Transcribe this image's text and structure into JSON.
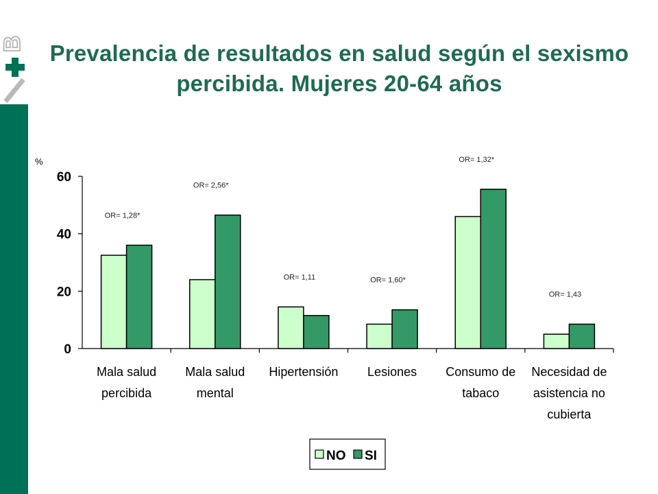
{
  "slide": {
    "title": "Prevalencia de resultados en salud según el sexismo percibida. Mujeres 20-64 años",
    "accent_color": "#007156",
    "title_color": "#1e6b52"
  },
  "chart_data": {
    "type": "bar",
    "title": "",
    "ylabel": "%",
    "xlabel": "",
    "ylim": [
      0,
      60
    ],
    "yticks": [
      0,
      20,
      40,
      60
    ],
    "grid": false,
    "legend_position": "bottom",
    "categories": [
      [
        "Mala salud",
        "percibida"
      ],
      [
        "Mala salud",
        "mental"
      ],
      [
        "Hipertensión"
      ],
      [
        "Lesiones"
      ],
      [
        "Consumo de",
        "tabaco"
      ],
      [
        "Necesidad de",
        "asistencia no",
        "cubierta"
      ]
    ],
    "series": [
      {
        "name": "NO",
        "color": "#ccffcc",
        "values": [
          32.5,
          24,
          14.5,
          8.5,
          46,
          5
        ]
      },
      {
        "name": "SI",
        "color": "#339966",
        "values": [
          36,
          46.5,
          11.5,
          13.5,
          55.5,
          8.5
        ]
      }
    ],
    "annotations": [
      "OR= 1,28*",
      "OR= 2,56*",
      "OR= 1,11",
      "OR= 1,60*",
      "OR= 1,32*",
      "OR= 1,43"
    ]
  }
}
